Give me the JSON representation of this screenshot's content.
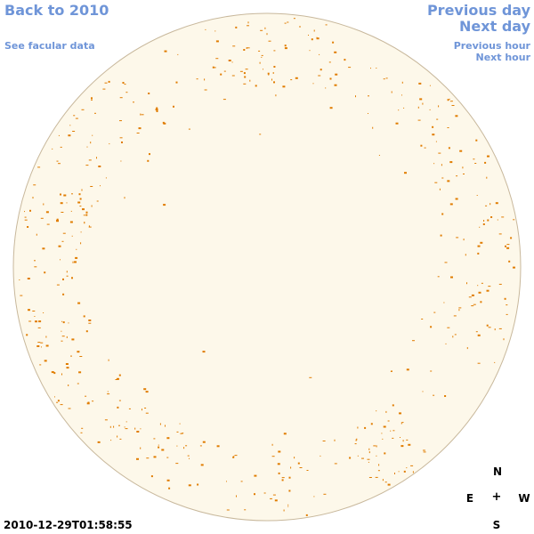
{
  "nav": {
    "back": "Back to 2010",
    "facular": "See facular data",
    "previous_day": "Previous day",
    "next_day": "Next day",
    "previous_hour": "Previous hour",
    "next_hour": "Next hour"
  },
  "compass": {
    "north": "N",
    "south": "S",
    "east": "E",
    "west": "W",
    "center": "+"
  },
  "timestamp": "2010-12-29T01:58:55",
  "colors": {
    "link": "#6f95d8",
    "disk_fill": "#fdf8ea",
    "disk_outline": "#c8b89c",
    "facula": "#e07c00"
  }
}
